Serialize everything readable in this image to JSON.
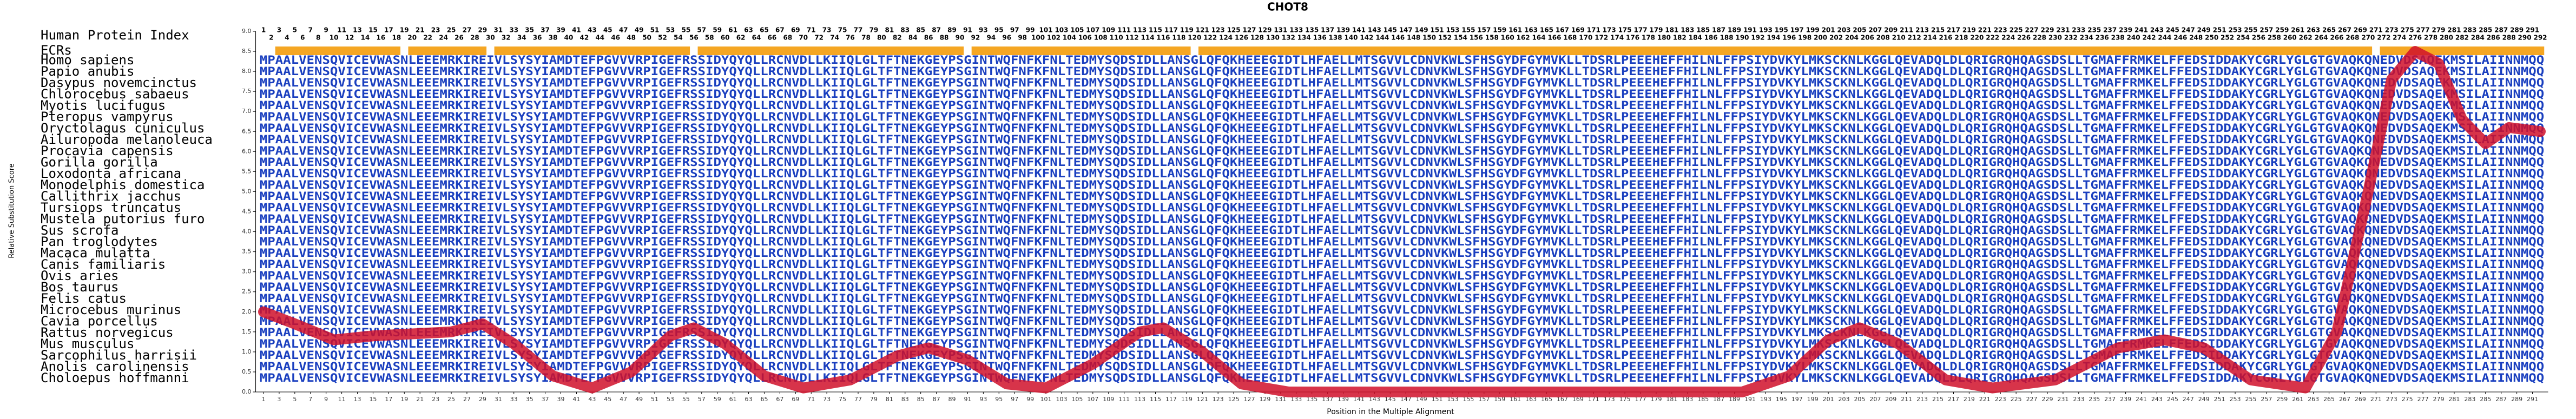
{
  "chart_data": {
    "type": "line",
    "title": "CHOT8",
    "index_label": "Human Protein Index",
    "ecr_label": "ECRs",
    "xlabel": "Position in the Multiple Alignment",
    "ylabel": "Relative Substitution Score",
    "xlim": [
      1,
      292
    ],
    "ylim": [
      0,
      9
    ],
    "yticks": [
      {
        "value": 0,
        "label": "0.0"
      },
      {
        "value": 0.5,
        "label": "0.5"
      },
      {
        "value": 1,
        "label": "1.0"
      },
      {
        "value": 1.5,
        "label": "1.5"
      },
      {
        "value": 2,
        "label": "2.0"
      },
      {
        "value": 2.5,
        "label": "2.5"
      },
      {
        "value": 3,
        "label": "3.0"
      },
      {
        "value": 3.5,
        "label": "3.5"
      },
      {
        "value": 4,
        "label": "4.0"
      },
      {
        "value": 4.5,
        "label": "4.5"
      },
      {
        "value": 5,
        "label": "5.0"
      },
      {
        "value": 5.5,
        "label": "5.5"
      },
      {
        "value": 6,
        "label": "6.0"
      },
      {
        "value": 6.5,
        "label": "6.5"
      },
      {
        "value": 7,
        "label": "7.0"
      },
      {
        "value": 7.5,
        "label": "7.5"
      },
      {
        "value": 8,
        "label": "8.0"
      },
      {
        "value": 8.5,
        "label": "8.5"
      },
      {
        "value": 9,
        "label": "9.0"
      }
    ],
    "xticks": [
      1,
      3,
      5,
      7,
      9,
      11,
      13,
      15,
      17,
      19,
      21,
      23,
      25,
      27,
      29,
      31,
      33,
      35,
      37,
      39,
      41,
      43,
      45,
      47,
      49,
      51,
      53,
      55,
      57,
      59,
      61,
      63,
      65,
      67,
      69,
      71,
      73,
      75,
      77,
      79,
      81,
      83,
      85,
      87,
      89,
      91,
      93,
      95,
      97,
      99,
      101,
      103,
      105,
      107,
      109,
      111,
      113,
      115,
      117,
      119,
      121,
      123,
      125,
      127,
      129,
      131,
      133,
      135,
      137,
      139,
      141,
      143,
      145,
      147,
      149,
      151,
      153,
      155,
      157,
      159,
      161,
      163,
      165,
      167,
      169,
      171,
      173,
      175,
      177,
      179,
      181,
      183,
      185,
      187,
      189,
      191,
      193,
      195,
      197,
      199,
      201,
      203,
      205,
      207,
      209,
      211,
      213,
      215,
      217,
      219,
      221,
      223,
      225,
      227,
      229,
      231,
      233,
      235,
      237,
      239,
      241,
      243,
      245,
      247,
      249,
      251,
      253,
      255,
      257,
      259,
      261,
      263,
      265,
      267,
      269,
      271,
      273,
      275,
      277,
      279,
      281,
      283,
      285,
      287,
      289,
      291
    ],
    "human_index": [
      1,
      2,
      3,
      4,
      5,
      6,
      7,
      8,
      9,
      10,
      11,
      12,
      13,
      14,
      15,
      16,
      17,
      18,
      19,
      20,
      21,
      22,
      23,
      24,
      25,
      26,
      27,
      28,
      29,
      30,
      31,
      32,
      33,
      34,
      35,
      36,
      37,
      38,
      39,
      40,
      41,
      42,
      43,
      44,
      45,
      46,
      47,
      48,
      49,
      50,
      51,
      52,
      53,
      54,
      55,
      56,
      57,
      58,
      59,
      60,
      61,
      62,
      63,
      64,
      65,
      66,
      67,
      68,
      69,
      70,
      71,
      72,
      73,
      74,
      75,
      76,
      77,
      78,
      79,
      80,
      81,
      82,
      83,
      84,
      85,
      86,
      87,
      88,
      89,
      90,
      91,
      92,
      93,
      94,
      95,
      96,
      97,
      98,
      99,
      100,
      101,
      102,
      103,
      104,
      105,
      106,
      107,
      108,
      109,
      110,
      111,
      112,
      113,
      114,
      115,
      116,
      117,
      118,
      119,
      120,
      121,
      122,
      123,
      124,
      125,
      126,
      127,
      128,
      129,
      130,
      131,
      132,
      133,
      134,
      135,
      136,
      137,
      138,
      139,
      140,
      141,
      142,
      143,
      144,
      145,
      146,
      147,
      148,
      149,
      150,
      151,
      152,
      153,
      154,
      155,
      156,
      157,
      158,
      159,
      160,
      161,
      162,
      163,
      164,
      165,
      166,
      167,
      168,
      169,
      170,
      171,
      172,
      173,
      174,
      175,
      176,
      177,
      178,
      179,
      180,
      181,
      182,
      183,
      184,
      185,
      186,
      187,
      188,
      189,
      190,
      191,
      192,
      193,
      194,
      195,
      196,
      197,
      198,
      199,
      200,
      201,
      202,
      203,
      204,
      205,
      206,
      207,
      208,
      209,
      210,
      211,
      212,
      213,
      214,
      215,
      216,
      217,
      218,
      219,
      220,
      221,
      222,
      223,
      224,
      225,
      226,
      227,
      228,
      229,
      230,
      231,
      232,
      233,
      234,
      235,
      236,
      237,
      238,
      239,
      240,
      241,
      242,
      243,
      244,
      245,
      246,
      247,
      248,
      249,
      250,
      251,
      252,
      253,
      254,
      255,
      256,
      257,
      258,
      259,
      260,
      261,
      262,
      263,
      264,
      265,
      266,
      267,
      268,
      269,
      270,
      271,
      272,
      273,
      274,
      275,
      276,
      277,
      278,
      279,
      280,
      281,
      282,
      283,
      284,
      285,
      286,
      287,
      288,
      289,
      290,
      291,
      292
    ],
    "ecr_color": "#f5a623",
    "ecrs": [
      [
        3,
        18
      ],
      [
        20,
        29
      ],
      [
        31,
        55
      ],
      [
        57,
        90
      ],
      [
        92,
        119
      ],
      [
        121,
        270
      ],
      [
        272,
        292
      ]
    ],
    "species": [
      "Homo sapiens",
      "Papio anubis",
      "Dasypus novemcinctus",
      "Chlorocebus sabaeus",
      "Myotis lucifugus",
      "Pteropus vampyrus",
      "Oryctolagus cuniculus",
      "Ailuropoda melanoleuca",
      "Procavia capensis",
      "Gorilla gorilla",
      "Loxodonta africana",
      "Monodelphis domestica",
      "Callithrix jacchus",
      "Tursiops truncatus",
      "Mustela putorius furo",
      "Sus scrofa",
      "Pan troglodytes",
      "Macaca mulatta",
      "Canis familiaris",
      "Ovis aries",
      "Bos taurus",
      "Felis catus",
      "Microcebus murinus",
      "Cavia porcellus",
      "Rattus norvegicus",
      "Mus musculus",
      "Sarcophilus harrisii",
      "Anolis carolinensis",
      "Choloepus hoffmanni"
    ],
    "sequences": [
      "MPAALVENSQVICEVWASNLEEEMRKIREIVLSYSYIAMDTEFPGVVVRPIGEFRSSIDYQYQLLRCNVDLLKIIQLGLTFTNEKGEYPSGINTWQFNFKFNLTEDMYSQDSIDLLANSGLQFQKHEEEGIDTLHFAELLMTSGVVLCDNVKWLSFHSGYDFGYMVKLLTDSRLPEEEHEFFHILNLFFPSIYDVKYLMKSCKNLKGGLQEVADQLDLQRIGRQHQAGSDSLLTGMAFFRMKELFFEDSIDDAKYCGRLYGLGTGVAQKQNEDVDSAQEKMSILAIINNMQQ",
      "MPAALVENSQVICEVWASNLEEEMRKIREIVLSYSYIAMDTEFPGVVVRPIGEFRSSIDYQYQLLRCNVDLLKIIQLGLTFTNEKGEYPSGINTWQFNFKFNLTEDMYSQDSIDLLANSGLQFQKHEEEGIDTLHFAELLMTSGVVLCDNVKWLSFHSGYDFGYMVKLLTDSRLPEEEHEFFHILNLFFPSIYDVKYLMKSCKNLKGGLQEVADQLDLQRIGRQHQAGSDSLLTGMAFFRMKELFFEDSIDDAKYCGRLYGLGTGVAQKQNEDVDSAQEKMSILAIINNMQQ",
      "MPAALVENSQVICEVWASNLEEEMRKIREIVLSYSYIAMDTEFPGVVVRPIGEFRSSIDYQYQLLRCNVDLLKIIQLGLTFTNEKGEYPSGINTWQFNFKFNLTEDMYSQDSIDLLANSGLQFQKHEEEGIDTLHFAELLMTSGVVLCDNVKWLSFHSGYDFGYMVKLLTDSRLPEEEHEFFHILNLFFPSIYDVKYLMKSCKNLKGGLQEVADQLDLQRIGRQHQAGSDSLLTGMAFFRMKELFFEDSIDDAKYCGRLYGLGTGVAQKQNEDVDSAQEKMSILAIINNMQQ",
      "MPAALVENSQVICEVWASNLEEEMRKIREIVLSYSYIAMDTEFPGVVVRPIGEFRSSIDYQYQLLRCNVDLLKIIQLGLTFTNEKGEYPSGINTWQFNFKFNLTEDMYSQDSIDLLANSGLQFQKHEEEGIDTLHFAELLMTSGVVLCDNVKWLSFHSGYDFGYMVKLLTDSRLPEEEHEFFHILNLFFPSIYDVKYLMKSCKNLKGGLQEVADQLDLQRIGRQHQAGSDSLLTGMAFFRMKELFFEDSIDDAKYCGRLYGLGTGVAQKQNEDVDSAQEKMSILAIINNMQQ",
      "MPAALVENSQVICEVWASNLEEEMRKIREIVLSYSYIAMDTEFPGVVVRPIGEFRSSIDYQYQLLRCNVDLLKIIQLGLTFTNEKGEYPSGINTWQFNFKFNLTEDMYSQDSIDLLANSGLQFQKHEEEGIDTLHFAELLMTSGVVLCDNVKWLSFHSGYDFGYMVKLLTDSRLPEEEHEFFHILNLFFPSIYDVKYLMKSCKNLKGGLQEVADQLDLQRIGRQHQAGSDSLLTGMAFFRMKELFFEDSIDDAKYCGRLYGLGTGVAQKQNEDVDSAQEKMSILAIINNMQQ",
      "MPAALVENSQVICEVWASNLEEEMRKIREIVLSYSYIAMDTEFPGVVVRPIGEFRSSIDYQYQLLRCNVDLLKIIQLGLTFTNEKGEYPSGINTWQFNFKFNLTEDMYSQDSIDLLANSGLQFQKHEEEGIDTLHFAELLMTSGVVLCDNVKWLSFHSGYDFGYMVKLLTDSRLPEEEHEFFHILNLFFPSIYDVKYLMKSCKNLKGGLQEVADQLDLQRIGRQHQAGSDSLLTGMAFFRMKELFFEDSIDDAKYCGRLYGLGTGVAQKQNEDVDSAQEKMSILAIINNMQQ",
      "MPAALVENSQVICEVWASNLEEEMRKIREIVLSYSYIAMDTEFPGVVVRPIGEFRSSIDYQYQLLRCNVDLLKIIQLGLTFTNEKGEYPSGINTWQFNFKFNLTEDMYSQDSIDLLANSGLQFQKHEEEGIDTLHFAELLMTSGVVLCDNVKWLSFHSGYDFGYMVKLLTDSRLPEEEHEFFHILNLFFPSIYDVKYLMKSCKNLKGGLQEVADQLDLQRIGRQHQAGSDSLLTGMAFFRMKELFFEDSIDDAKYCGRLYGLGTGVAQKQNEDVDSAQEKMSILAIINNMQQ",
      "MPAALVENSQVICEVWASNLEEEMRKIREIVLSYSYIAMDTEFPGVVVRPIGEFRSSIDYQYQLLRCNVDLLKIIQLGLTFTNEKGEYPSGINTWQFNFKFNLTEDMYSQDSIDLLANSGLQFQKHEEEGIDTLHFAELLMTSGVVLCDNVKWLSFHSGYDFGYMVKLLTDSRLPEEEHEFFHILNLFFPSIYDVKYLMKSCKNLKGGLQEVADQLDLQRIGRQHQAGSDSLLTGMAFFRMKELFFEDSIDDAKYCGRLYGLGTGVAQKQNEDVDSAQEKMSILAIINNMQQ",
      "MPAALVENSQVICEVWASNLEEEMRKIREIVLSYSYIAMDTEFPGVVVRPIGEFRSSIDYQYQLLRCNVDLLKIIQLGLTFTNEKGEYPSGINTWQFNFKFNLTEDMYSQDSIDLLANSGLQFQKHEEEGIDTLHFAELLMTSGVVLCDNVKWLSFHSGYDFGYMVKLLTDSRLPEEEHEFFHILNLFFPSIYDVKYLMKSCKNLKGGLQEVADQLDLQRIGRQHQAGSDSLLTGMAFFRMKELFFEDSIDDAKYCGRLYGLGTGVAQKQNEDVDSAQEKMSILAIINNMQQ",
      "MPAALVENSQVICEVWASNLEEEMRKIREIVLSYSYIAMDTEFPGVVVRPIGEFRSSIDYQYQLLRCNVDLLKIIQLGLTFTNEKGEYPSGINTWQFNFKFNLTEDMYSQDSIDLLANSGLQFQKHEEEGIDTLHFAELLMTSGVVLCDNVKWLSFHSGYDFGYMVKLLTDSRLPEEEHEFFHILNLFFPSIYDVKYLMKSCKNLKGGLQEVADQLDLQRIGRQHQAGSDSLLTGMAFFRMKELFFEDSIDDAKYCGRLYGLGTGVAQKQNEDVDSAQEKMSILAIINNMQQ",
      "MPAALVENSQVICEVWASNLEEEMRKIREIVLSYSYIAMDTEFPGVVVRPIGEFRSSIDYQYQLLRCNVDLLKIIQLGLTFTNEKGEYPSGINTWQFNFKFNLTEDMYSQDSIDLLANSGLQFQKHEEEGIDTLHFAELLMTSGVVLCDNVKWLSFHSGYDFGYMVKLLTDSRLPEEEHEFFHILNLFFPSIYDVKYLMKSCKNLKGGLQEVADQLDLQRIGRQHQAGSDSLLTGMAFFRMKELFFEDSIDDAKYCGRLYGLGTGVAQKQNEDVDSAQEKMSILAIINNMQQ",
      "MPAALVENSQVICEVWASNLEEEMRKIREIVLSYSYIAMDTEFPGVVVRPIGEFRSSIDYQYQLLRCNVDLLKIIQLGLTFTNEKGEYPSGINTWQFNFKFNLTEDMYSQDSIDLLANSGLQFQKHEEEGIDTLHFAELLMTSGVVLCDNVKWLSFHSGYDFGYMVKLLTDSRLPEEEHEFFHILNLFFPSIYDVKYLMKSCKNLKGGLQEVADQLDLQRIGRQHQAGSDSLLTGMAFFRMKELFFEDSIDDAKYCGRLYGLGTGVAQKQNEDVDSAQEKMSILAIINNMQQ",
      "MPAALVENSQVICEVWASNLEEEMRKIREIVLSYSYIAMDTEFPGVVVRPIGEFRSSIDYQYQLLRCNVDLLKIIQLGLTFTNEKGEYPSGINTWQFNFKFNLTEDMYSQDSIDLLANSGLQFQKHEEEGIDTLHFAELLMTSGVVLCDNVKWLSFHSGYDFGYMVKLLTDSRLPEEEHEFFHILNLFFPSIYDVKYLMKSCKNLKGGLQEVADQLDLQRIGRQHQAGSDSLLTGMAFFRMKELFFEDSIDDAKYCGRLYGLGTGVAQKQNEDVDSAQEKMSILAIINNMQQ",
      "MPAALVENSQVICEVWASNLEEEMRKIREIVLSYSYIAMDTEFPGVVVRPIGEFRSSIDYQYQLLRCNVDLLKIIQLGLTFTNEKGEYPSGINTWQFNFKFNLTEDMYSQDSIDLLANSGLQFQKHEEEGIDTLHFAELLMTSGVVLCDNVKWLSFHSGYDFGYMVKLLTDSRLPEEEHEFFHILNLFFPSIYDVKYLMKSCKNLKGGLQEVADQLDLQRIGRQHQAGSDSLLTGMAFFRMKELFFEDSIDDAKYCGRLYGLGTGVAQKQNEDVDSAQEKMSILAIINNMQQ",
      "MPAALVENSQVICEVWASNLEEEMRKIREIVLSYSYIAMDTEFPGVVVRPIGEFRSSIDYQYQLLRCNVDLLKIIQLGLTFTNEKGEYPSGINTWQFNFKFNLTEDMYSQDSIDLLANSGLQFQKHEEEGIDTLHFAELLMTSGVVLCDNVKWLSFHSGYDFGYMVKLLTDSRLPEEEHEFFHILNLFFPSIYDVKYLMKSCKNLKGGLQEVADQLDLQRIGRQHQAGSDSLLTGMAFFRMKELFFEDSIDDAKYCGRLYGLGTGVAQKQNEDVDSAQEKMSILAIINNMQQ",
      "MPAALVENSQVICEVWASNLEEEMRKIREIVLSYSYIAMDTEFPGVVVRPIGEFRSSIDYQYQLLRCNVDLLKIIQLGLTFTNEKGEYPSGINTWQFNFKFNLTEDMYSQDSIDLLANSGLQFQKHEEEGIDTLHFAELLMTSGVVLCDNVKWLSFHSGYDFGYMVKLLTDSRLPEEEHEFFHILNLFFPSIYDVKYLMKSCKNLKGGLQEVADQLDLQRIGRQHQAGSDSLLTGMAFFRMKELFFEDSIDDAKYCGRLYGLGTGVAQKQNEDVDSAQEKMSILAIINNMQQ",
      "MPAALVENSQVICEVWASNLEEEMRKIREIVLSYSYIAMDTEFPGVVVRPIGEFRSSIDYQYQLLRCNVDLLKIIQLGLTFTNEKGEYPSGINTWQFNFKFNLTEDMYSQDSIDLLANSGLQFQKHEEEGIDTLHFAELLMTSGVVLCDNVKWLSFHSGYDFGYMVKLLTDSRLPEEEHEFFHILNLFFPSIYDVKYLMKSCKNLKGGLQEVADQLDLQRIGRQHQAGSDSLLTGMAFFRMKELFFEDSIDDAKYCGRLYGLGTGVAQKQNEDVDSAQEKMSILAIINNMQQ",
      "MPAALVENSQVICEVWASNLEEEMRKIREIVLSYSYIAMDTEFPGVVVRPIGEFRSSIDYQYQLLRCNVDLLKIIQLGLTFTNEKGEYPSGINTWQFNFKFNLTEDMYSQDSIDLLANSGLQFQKHEEEGIDTLHFAELLMTSGVVLCDNVKWLSFHSGYDFGYMVKLLTDSRLPEEEHEFFHILNLFFPSIYDVKYLMKSCKNLKGGLQEVADQLDLQRIGRQHQAGSDSLLTGMAFFRMKELFFEDSIDDAKYCGRLYGLGTGVAQKQNEDVDSAQEKMSILAIINNMQQ",
      "MPAALVENSQVICEVWASNLEEEMRKIREIVLSYSYIAMDTEFPGVVVRPIGEFRSSIDYQYQLLRCNVDLLKIIQLGLTFTNEKGEYPSGINTWQFNFKFNLTEDMYSQDSIDLLANSGLQFQKHEEEGIDTLHFAELLMTSGVVLCDNVKWLSFHSGYDFGYMVKLLTDSRLPEEEHEFFHILNLFFPSIYDVKYLMKSCKNLKGGLQEVADQLDLQRIGRQHQAGSDSLLTGMAFFRMKELFFEDSIDDAKYCGRLYGLGTGVAQKQNEDVDSAQEKMSILAIINNMQQ",
      "MPAALVENSQVICEVWASNLEEEMRKIREIVLSYSYIAMDTEFPGVVVRPIGEFRSSIDYQYQLLRCNVDLLKIIQLGLTFTNEKGEYPSGINTWQFNFKFNLTEDMYSQDSIDLLANSGLQFQKHEEEGIDTLHFAELLMTSGVVLCDNVKWLSFHSGYDFGYMVKLLTDSRLPEEEHEFFHILNLFFPSIYDVKYLMKSCKNLKGGLQEVADQLDLQRIGRQHQAGSDSLLTGMAFFRMKELFFEDSIDDAKYCGRLYGLGTGVAQKQNEDVDSAQEKMSILAIINNMQQ",
      "MPAALVENSQVICEVWASNLEEEMRKIREIVLSYSYIAMDTEFPGVVVRPIGEFRSSIDYQYQLLRCNVDLLKIIQLGLTFTNEKGEYPSGINTWQFNFKFNLTEDMYSQDSIDLLANSGLQFQKHEEEGIDTLHFAELLMTSGVVLCDNVKWLSFHSGYDFGYMVKLLTDSRLPEEEHEFFHILNLFFPSIYDVKYLMKSCKNLKGGLQEVADQLDLQRIGRQHQAGSDSLLTGMAFFRMKELFFEDSIDDAKYCGRLYGLGTGVAQKQNEDVDSAQEKMSILAIINNMQQ",
      "MPAALVENSQVICEVWASNLEEEMRKIREIVLSYSYIAMDTEFPGVVVRPIGEFRSSIDYQYQLLRCNVDLLKIIQLGLTFTNEKGEYPSGINTWQFNFKFNLTEDMYSQDSIDLLANSGLQFQKHEEEGIDTLHFAELLMTSGVVLCDNVKWLSFHSGYDFGYMVKLLTDSRLPEEEHEFFHILNLFFPSIYDVKYLMKSCKNLKGGLQEVADQLDLQRIGRQHQAGSDSLLTGMAFFRMKELFFEDSIDDAKYCGRLYGLGTGVAQKQNEDVDSAQEKMSILAIINNMQQ",
      "MPAALVENSQVICEVWASNLEEEMRKIREIVLSYSYIAMDTEFPGVVVRPIGEFRSSIDYQYQLLRCNVDLLKIIQLGLTFTNEKGEYPSGINTWQFNFKFNLTEDMYSQDSIDLLANSGLQFQKHEEEGIDTLHFAELLMTSGVVLCDNVKWLSFHSGYDFGYMVKLLTDSRLPEEEHEFFHILNLFFPSIYDVKYLMKSCKNLKGGLQEVADQLDLQRIGRQHQAGSDSLLTGMAFFRMKELFFEDSIDDAKYCGRLYGLGTGVAQKQNEDVDSAQEKMSILAIINNMQQ",
      "MPAALVENSQVICEVWASNLEEEMRKIREIVLSYSYIAMDTEFPGVVVRPIGEFRSSIDYQYQLLRCNVDLLKIIQLGLTFTNEKGEYPSGINTWQFNFKFNLTEDMYSQDSIDLLANSGLQFQKHEEEGIDTLHFAELLMTSGVVLCDNVKWLSFHSGYDFGYMVKLLTDSRLPEEEHEFFHILNLFFPSIYDVKYLMKSCKNLKGGLQEVADQLDLQRIGRQHQAGSDSLLTGMAFFRMKELFFEDSIDDAKYCGRLYGLGTGVAQKQNEDVDSAQEKMSILAIINNMQQ",
      "MPAALVENSQVICEVWASNLEEEMRKIREIVLSYSYIAMDTEFPGVVVRPIGEFRSSIDYQYQLLRCNVDLLKIIQLGLTFTNEKGEYPSGINTWQFNFKFNLTEDMYSQDSIDLLANSGLQFQKHEEEGIDTLHFAELLMTSGVVLCDNVKWLSFHSGYDFGYMVKLLTDSRLPEEEHEFFHILNLFFPSIYDVKYLMKSCKNLKGGLQEVADQLDLQRIGRQHQAGSDSLLTGMAFFRMKELFFEDSIDDAKYCGRLYGLGTGVAQKQNEDVDSAQEKMSILAIINNMQQ",
      "MPAALVENSQVICEVWASNLEEEMRKIREIVLSYSYIAMDTEFPGVVVRPIGEFRSSIDYQYQLLRCNVDLLKIIQLGLTFTNEKGEYPSGINTWQFNFKFNLTEDMYSQDSIDLLANSGLQFQKHEEEGIDTLHFAELLMTSGVVLCDNVKWLSFHSGYDFGYMVKLLTDSRLPEEEHEFFHILNLFFPSIYDVKYLMKSCKNLKGGLQEVADQLDLQRIGRQHQAGSDSLLTGMAFFRMKELFFEDSIDDAKYCGRLYGLGTGVAQKQNEDVDSAQEKMSILAIINNMQQ",
      "MPAALVENSQVICEVWASNLEEEMRKIREIVLSYSYIAMDTEFPGVVVRPIGEFRSSIDYQYQLLRCNVDLLKIIQLGLTFTNEKGEYPSGINTWQFNFKFNLTEDMYSQDSIDLLANSGLQFQKHEEEGIDTLHFAELLMTSGVVLCDNVKWLSFHSGYDFGYMVKLLTDSRLPEEEHEFFHILNLFFPSIYDVKYLMKSCKNLKGGLQEVADQLDLQRIGRQHQAGSDSLLTGMAFFRMKELFFEDSIDDAKYCGRLYGLGTGVAQKQNEDVDSAQEKMSILAIINNMQQ",
      "MPAALVENSQVICEVWASNLEEEMRKIREIVLSYSYIAMDTEFPGVVVRPIGEFRSSIDYQYQLLRCNVDLLKIIQLGLTFTNEKGEYPSGINTWQFNFKFNLTEDMYSQDSIDLLANSGLQFQKHEEEGIDTLHFAELLMTSGVVLCDNVKWLSFHSGYDFGYMVKLLTDSRLPEEEHEFFHILNLFFPSIYDVKYLMKSCKNLKGGLQEVADQLDLQRIGRQHQAGSDSLLTGMAFFRMKELFFEDSIDDAKYCGRLYGLGTGVAQKQNEDVDSAQEKMSILAIINNMQQ",
      "MPAALVENSQVICEVWASNLEEEMRKIREIVLSYSYIAMDTEFPGVVVRPIGEFRSSIDYQYQLLRCNVDLLKIIQLGLTFTNEKGEYPSGINTWQFNFKFNLTEDMYSQDSIDLLANSGLQFQKHEEEGIDTLHFAELLMTSGVVLCDNVKWLSFHSGYDFGYMVKLLTDSRLPEEEHEFFHILNLFFPSIYDVKYLMKSCKNLKGGLQEVADQLDLQRIGRQHQAGSDSLLTGMAFFRMKELFFEDSIDDAKYCGRLYGLGTGVAQKQNEDVDSAQEKMSILAIINNMQQ"
    ],
    "series": [
      {
        "color": "#d0102a",
        "x": [
          1,
          5,
          10,
          15,
          20,
          25,
          29,
          33,
          38,
          43,
          48,
          53,
          56,
          60,
          65,
          70,
          76,
          82,
          86,
          91,
          96,
          101,
          107,
          113,
          116,
          121,
          126,
          132,
          150,
          170,
          190,
          196,
          201,
          205,
          210,
          216,
          222,
          230,
          238,
          244,
          249,
          255,
          262,
          266,
          270,
          273,
          276,
          279,
          282,
          285,
          288,
          292
        ],
        "values": [
          2.0,
          1.7,
          1.3,
          1.4,
          1.45,
          1.5,
          1.7,
          1.2,
          0.4,
          0.1,
          0.5,
          1.4,
          1.6,
          1.2,
          0.4,
          0.1,
          0.3,
          0.9,
          1.1,
          0.8,
          0.2,
          0.1,
          0.7,
          1.5,
          1.6,
          1.0,
          0.2,
          0.0,
          0.0,
          0.0,
          0.0,
          0.4,
          1.3,
          1.6,
          1.2,
          0.3,
          0.1,
          0.3,
          1.1,
          1.3,
          1.1,
          0.3,
          0.1,
          1.5,
          5.0,
          7.8,
          8.5,
          8.2,
          6.8,
          6.2,
          6.6,
          6.5
        ]
      }
    ]
  }
}
